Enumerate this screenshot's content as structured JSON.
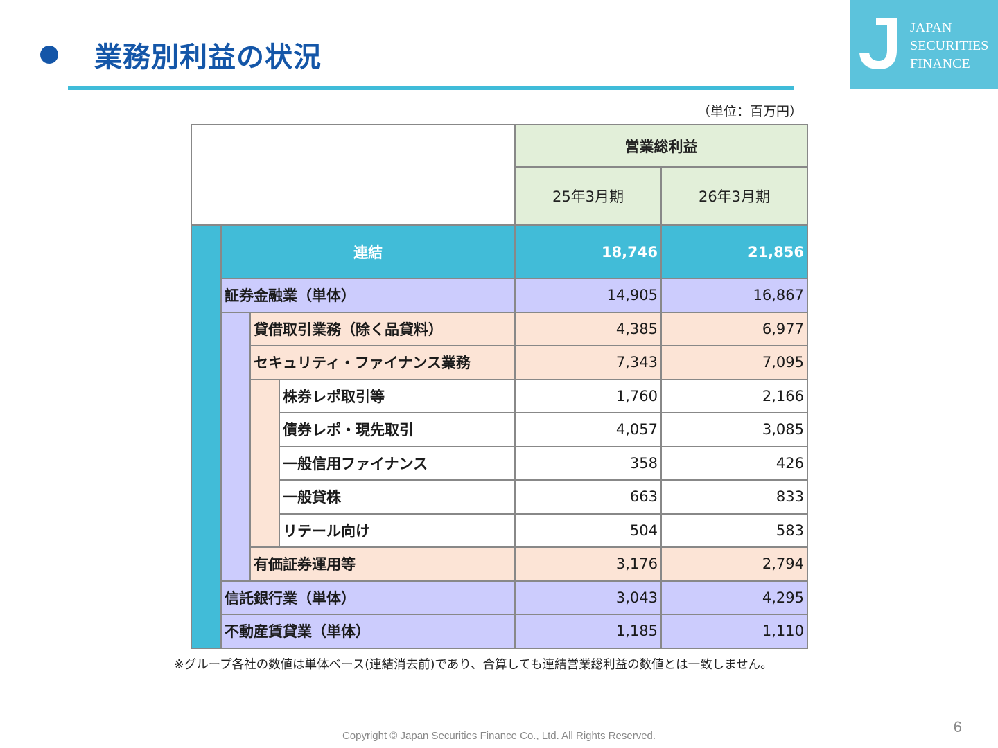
{
  "header": {
    "title": "業務別利益の状況",
    "accent_color": "#1456a8",
    "rule_color": "#3fbcd9"
  },
  "logo": {
    "mark": "J",
    "lines": [
      "JAPAN",
      "SECURITIES",
      "FINANCE"
    ],
    "color": "#5cc3dc"
  },
  "unit_note": "（単位：百万円）",
  "table": {
    "group_header": "営業総利益",
    "periods": [
      "25年3月期",
      "26年3月期"
    ],
    "total": {
      "label": "連結",
      "values": [
        "18,746",
        "21,856"
      ]
    },
    "rows": [
      {
        "level": 1,
        "label": "証券金融業（単体）",
        "values": [
          "14,905",
          "16,867"
        ]
      },
      {
        "level": 2,
        "label": "貸借取引業務（除く品貸料）",
        "values": [
          "4,385",
          "6,977"
        ]
      },
      {
        "level": 2,
        "label": "セキュリティ・ファイナンス業務",
        "values": [
          "7,343",
          "7,095"
        ]
      },
      {
        "level": 3,
        "label": "株券レポ取引等",
        "values": [
          "1,760",
          "2,166"
        ]
      },
      {
        "level": 3,
        "label": "債券レポ・現先取引",
        "values": [
          "4,057",
          "3,085"
        ]
      },
      {
        "level": 3,
        "label": "一般信用ファイナンス",
        "values": [
          "358",
          "426"
        ]
      },
      {
        "level": 3,
        "label": "一般貸株",
        "values": [
          "663",
          "833"
        ]
      },
      {
        "level": 3,
        "label": "リテール向け",
        "values": [
          "504",
          "583"
        ]
      },
      {
        "level": 2,
        "label": "有価証券運用等",
        "values": [
          "3,176",
          "2,794"
        ]
      },
      {
        "level": 1,
        "label": "信託銀行業（単体）",
        "values": [
          "3,043",
          "4,295"
        ]
      },
      {
        "level": 1,
        "label": "不動産賃貸業（単体）",
        "values": [
          "1,185",
          "1,110"
        ]
      }
    ]
  },
  "footnote": "※グループ各社の数値は単体ベース(連結消去前)であり、合算しても連結営業総利益の数値とは一致しません。",
  "copyright": "Copyright © Japan Securities Finance Co., Ltd. All Rights Reserved.",
  "page_number": "6"
}
